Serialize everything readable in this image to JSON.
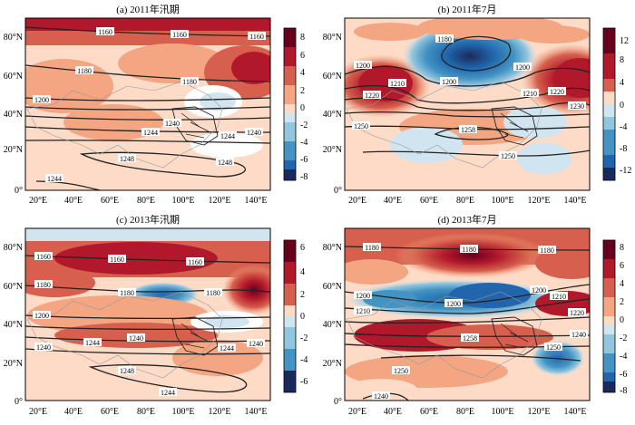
{
  "figure": {
    "panels": [
      {
        "id": "a",
        "title": "(a) 2011年汛期",
        "lat_ticks": [
          "0°",
          "20°N",
          "40°N",
          "60°N",
          "80°N"
        ],
        "lon_ticks": [
          "20°E",
          "40°E",
          "60°E",
          "80°E",
          "100°E",
          "120°E",
          "140°E"
        ],
        "colorbar_ticks": [
          "8",
          "6",
          "4",
          "2",
          "0",
          "-2",
          "-4",
          "-6",
          "-8"
        ],
        "contour_labels": [
          "1160",
          "1160",
          "1160",
          "1180",
          "1180",
          "1200",
          "1240",
          "1244",
          "1240",
          "1244",
          "1248",
          "1248",
          "1244"
        ]
      },
      {
        "id": "b",
        "title": "(b) 2011年7月",
        "lat_ticks": [
          "0°",
          "20°N",
          "40°N",
          "60°N",
          "80°N"
        ],
        "lon_ticks": [
          "20°E",
          "40°E",
          "60°E",
          "80°E",
          "100°E",
          "120°E",
          "140°E"
        ],
        "colorbar_ticks": [
          "12",
          "8",
          "4",
          "0",
          "-4",
          "-8",
          "-12"
        ],
        "contour_labels": [
          "1180",
          "1200",
          "1200",
          "1200",
          "1210",
          "1210",
          "1220",
          "1220",
          "1230",
          "1250",
          "1258",
          "1250"
        ]
      },
      {
        "id": "c",
        "title": "(c) 2013年汛期",
        "lat_ticks": [
          "0°",
          "20°N",
          "40°N",
          "60°N",
          "80°N"
        ],
        "lon_ticks": [
          "20°E",
          "40°E",
          "60°E",
          "80°E",
          "100°E",
          "120°E",
          "140°E"
        ],
        "colorbar_ticks": [
          "6",
          "4",
          "2",
          "0",
          "-2",
          "-4",
          "-6"
        ],
        "contour_labels": [
          "1160",
          "1160",
          "1160",
          "1180",
          "1180",
          "1180",
          "1200",
          "1240",
          "1240",
          "1244",
          "1244",
          "1240",
          "1248",
          "1244"
        ]
      },
      {
        "id": "d",
        "title": "(d) 2013年7月",
        "lat_ticks": [
          "0°",
          "20°N",
          "40°N",
          "60°N",
          "80°N"
        ],
        "lon_ticks": [
          "20°E",
          "40°E",
          "60°E",
          "80°E",
          "100°E",
          "120°E",
          "140°E"
        ],
        "colorbar_ticks": [
          "8",
          "6",
          "4",
          "2",
          "0",
          "-2",
          "-4",
          "-6",
          "-8"
        ],
        "contour_labels": [
          "1180",
          "1180",
          "1180",
          "1200",
          "1200",
          "1200",
          "1210",
          "1210",
          "1220",
          "1240",
          "1258",
          "1250",
          "1250",
          "1240"
        ]
      }
    ],
    "colors": {
      "strong_red": "#b2182b",
      "red": "#d6604d",
      "light_red": "#f4a582",
      "pink": "#fddbc7",
      "white": "#ffffff",
      "light_blue": "#d1e5f0",
      "blue": "#92c5de",
      "mid_blue": "#4393c3",
      "dark_blue": "#2166ac",
      "navy": "#1b2a5c"
    }
  }
}
